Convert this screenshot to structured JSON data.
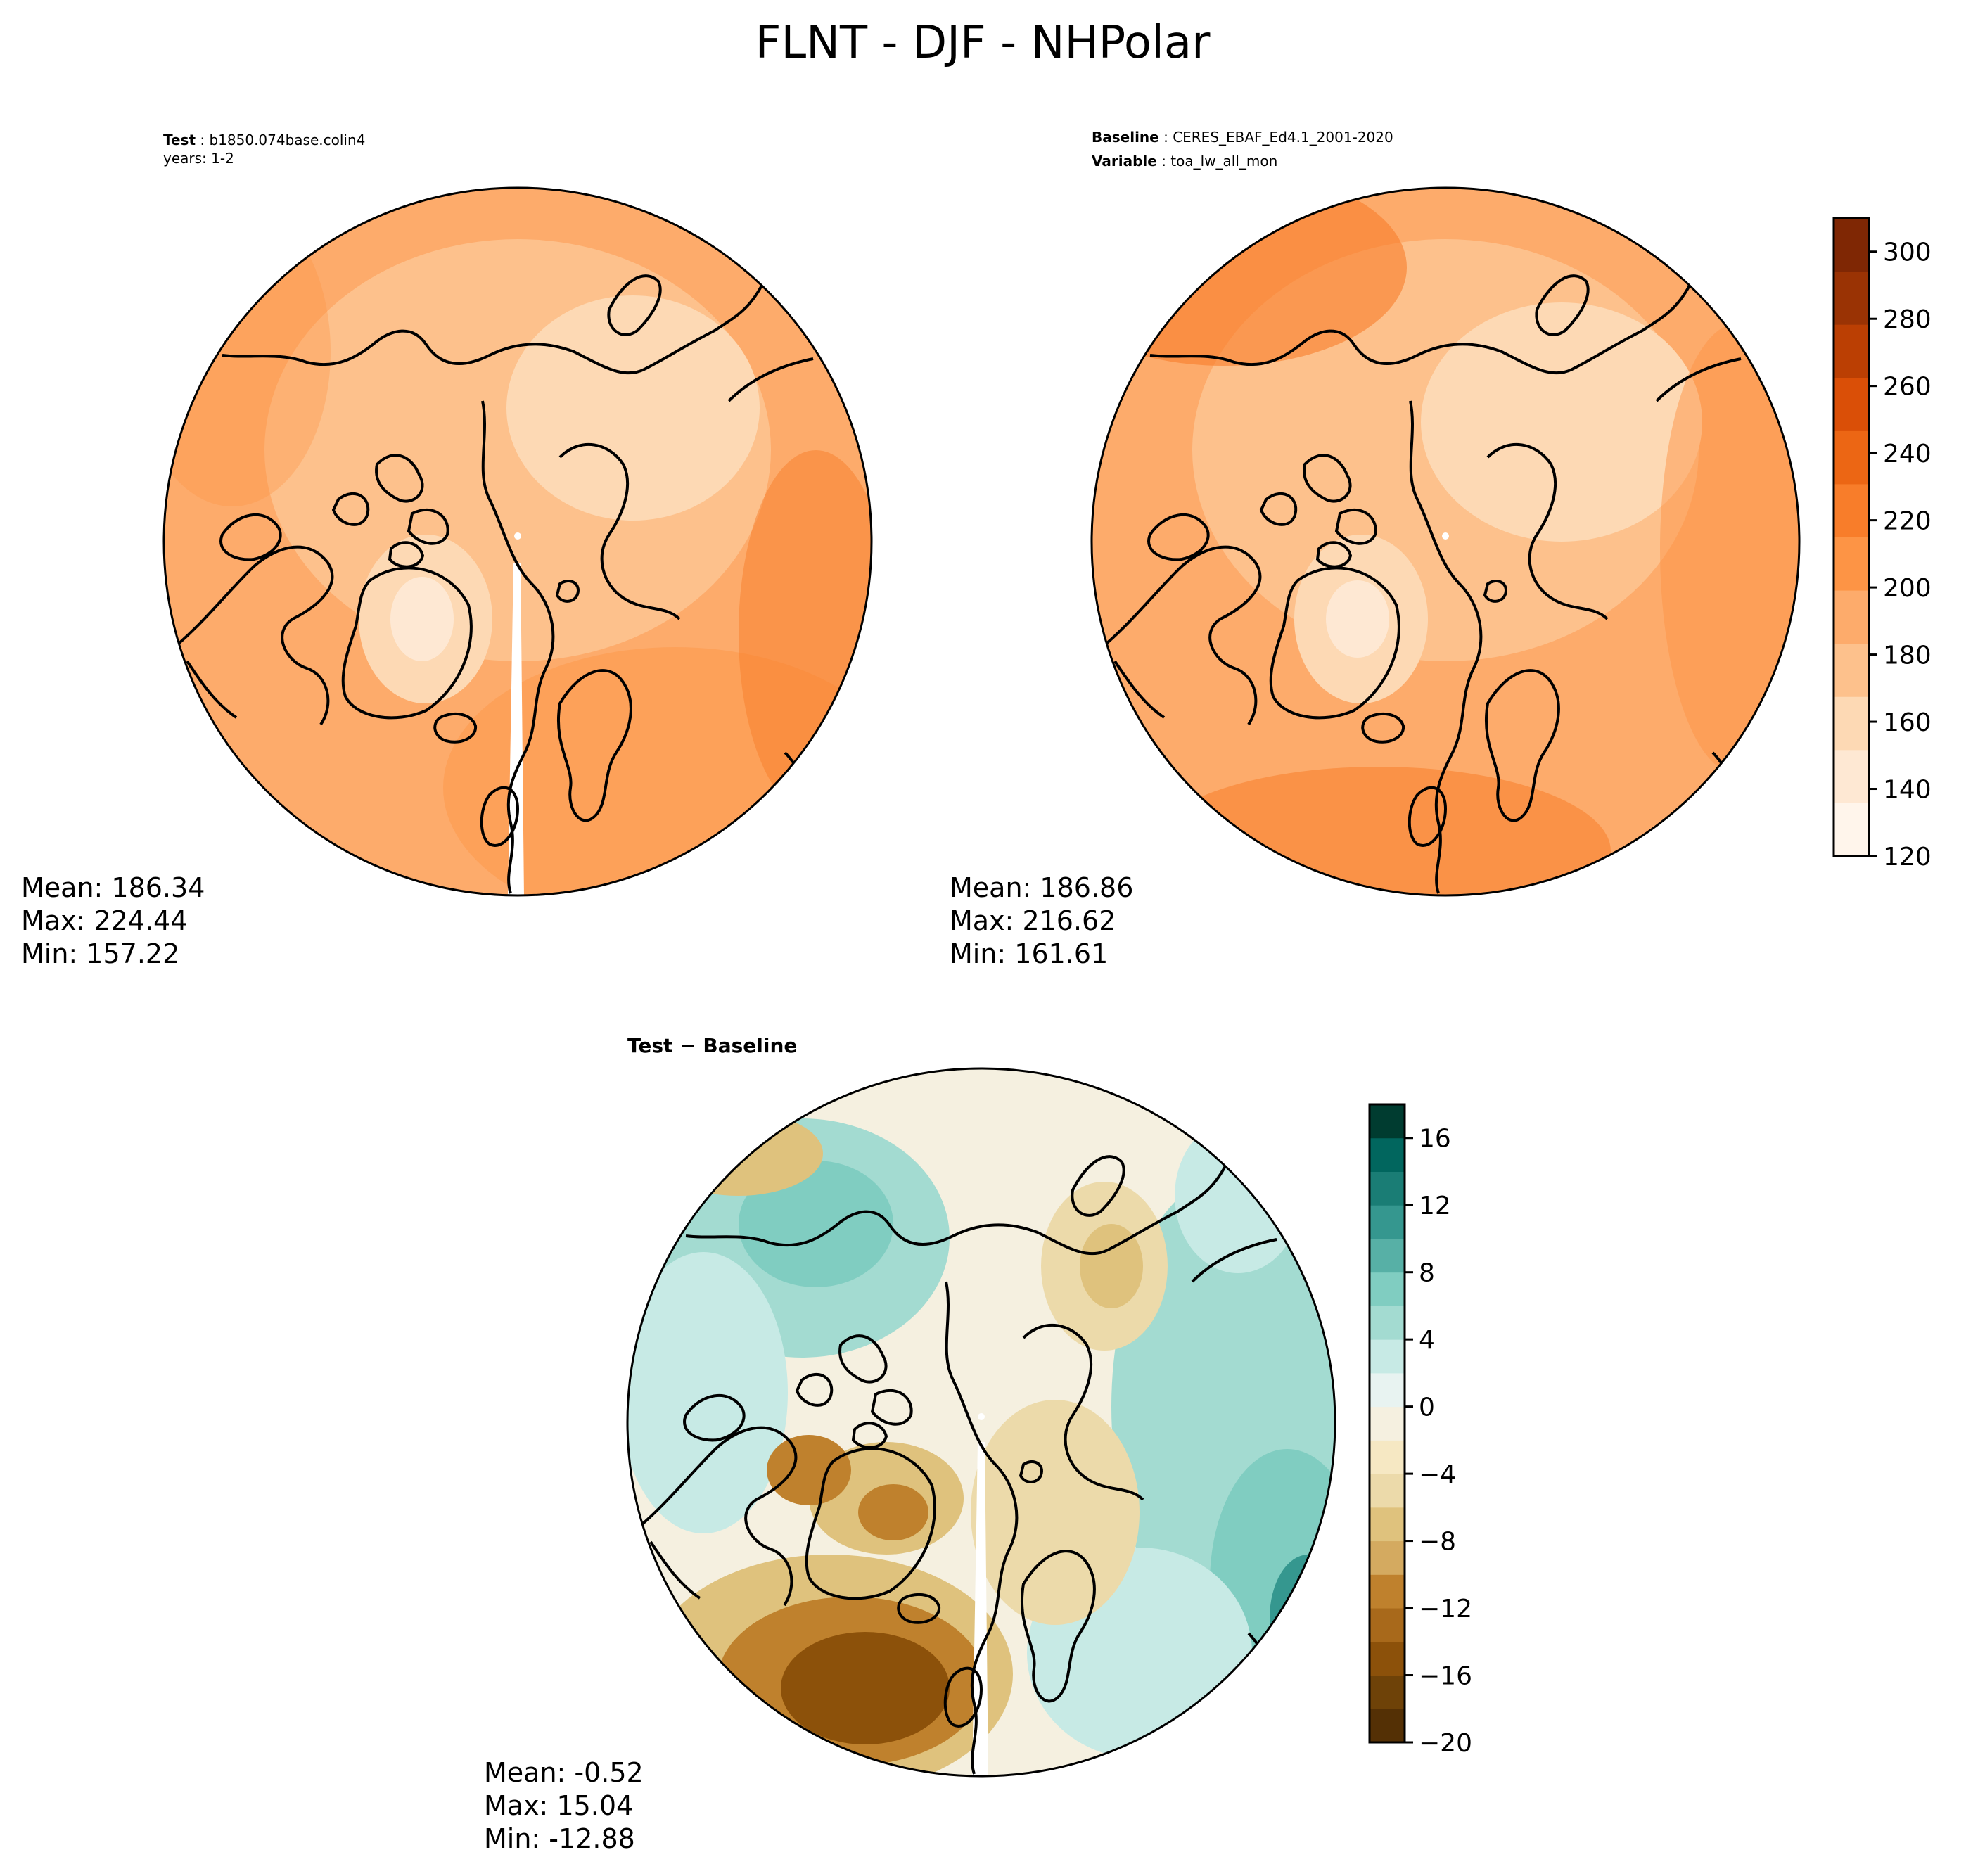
{
  "title": "FLNT - DJF - NHPolar",
  "panels": {
    "test": {
      "header_label": "Test",
      "header_value": "b1850.074base.colin4",
      "header_line2": "years: 1-2",
      "stats": {
        "mean": "Mean: 186.34",
        "max": "Max: 224.44",
        "min": "Min: 157.22"
      }
    },
    "baseline": {
      "header_label": "Baseline",
      "header_value": "CERES_EBAF_Ed4.1_2001-2020",
      "header_label2": "Variable",
      "header_value2": "toa_lw_all_mon",
      "stats": {
        "mean": "Mean: 186.86",
        "max": "Max: 216.62",
        "min": "Min: 161.61"
      }
    },
    "diff": {
      "header_label": "Test − Baseline",
      "stats": {
        "mean": "Mean: -0.52",
        "max": "Max: 15.04",
        "min": "Min: -12.88"
      }
    }
  },
  "colorbar_main": {
    "min": 120,
    "max": 310,
    "ticks": [
      "120",
      "140",
      "160",
      "180",
      "200",
      "220",
      "240",
      "260",
      "280",
      "300"
    ],
    "tick_values": [
      120,
      140,
      160,
      180,
      200,
      220,
      240,
      260,
      280,
      300
    ],
    "colors": [
      "#fff5eb",
      "#fee8d3",
      "#fdd9b4",
      "#fdc18c",
      "#fdab6b",
      "#fd9445",
      "#f87d2a",
      "#ec6614",
      "#da4f07",
      "#bb3f03",
      "#9a3304",
      "#7f2704"
    ]
  },
  "colorbar_diff": {
    "min": -20,
    "max": 18,
    "ticks": [
      "−20",
      "−16",
      "−12",
      "−8",
      "−4",
      "0",
      "4",
      "8",
      "12",
      "16"
    ],
    "tick_values": [
      -20,
      -16,
      -12,
      -8,
      -4,
      0,
      4,
      8,
      12,
      16
    ],
    "colors": [
      "#543005",
      "#6e4208",
      "#8c510a",
      "#a8691b",
      "#bf812d",
      "#d4aa60",
      "#dfc27d",
      "#ecdaaa",
      "#f6e8c3",
      "#f5f0e0",
      "#e8f3f1",
      "#c7eae5",
      "#a3dbd1",
      "#80cdc1",
      "#57b0a6",
      "#35978f",
      "#1a7d75",
      "#01665e",
      "#003c30"
    ]
  },
  "chart_data": [
    {
      "type": "map",
      "projection": "north-polar-stereographic",
      "panel": "test",
      "stats": {
        "mean": 186.34,
        "max": 224.44,
        "min": 157.22
      }
    },
    {
      "type": "map",
      "projection": "north-polar-stereographic",
      "panel": "baseline",
      "stats": {
        "mean": 186.86,
        "max": 216.62,
        "min": 161.61
      }
    },
    {
      "type": "map",
      "projection": "north-polar-stereographic",
      "panel": "test-minus-baseline",
      "stats": {
        "mean": -0.52,
        "max": 15.04,
        "min": -12.88
      }
    }
  ]
}
